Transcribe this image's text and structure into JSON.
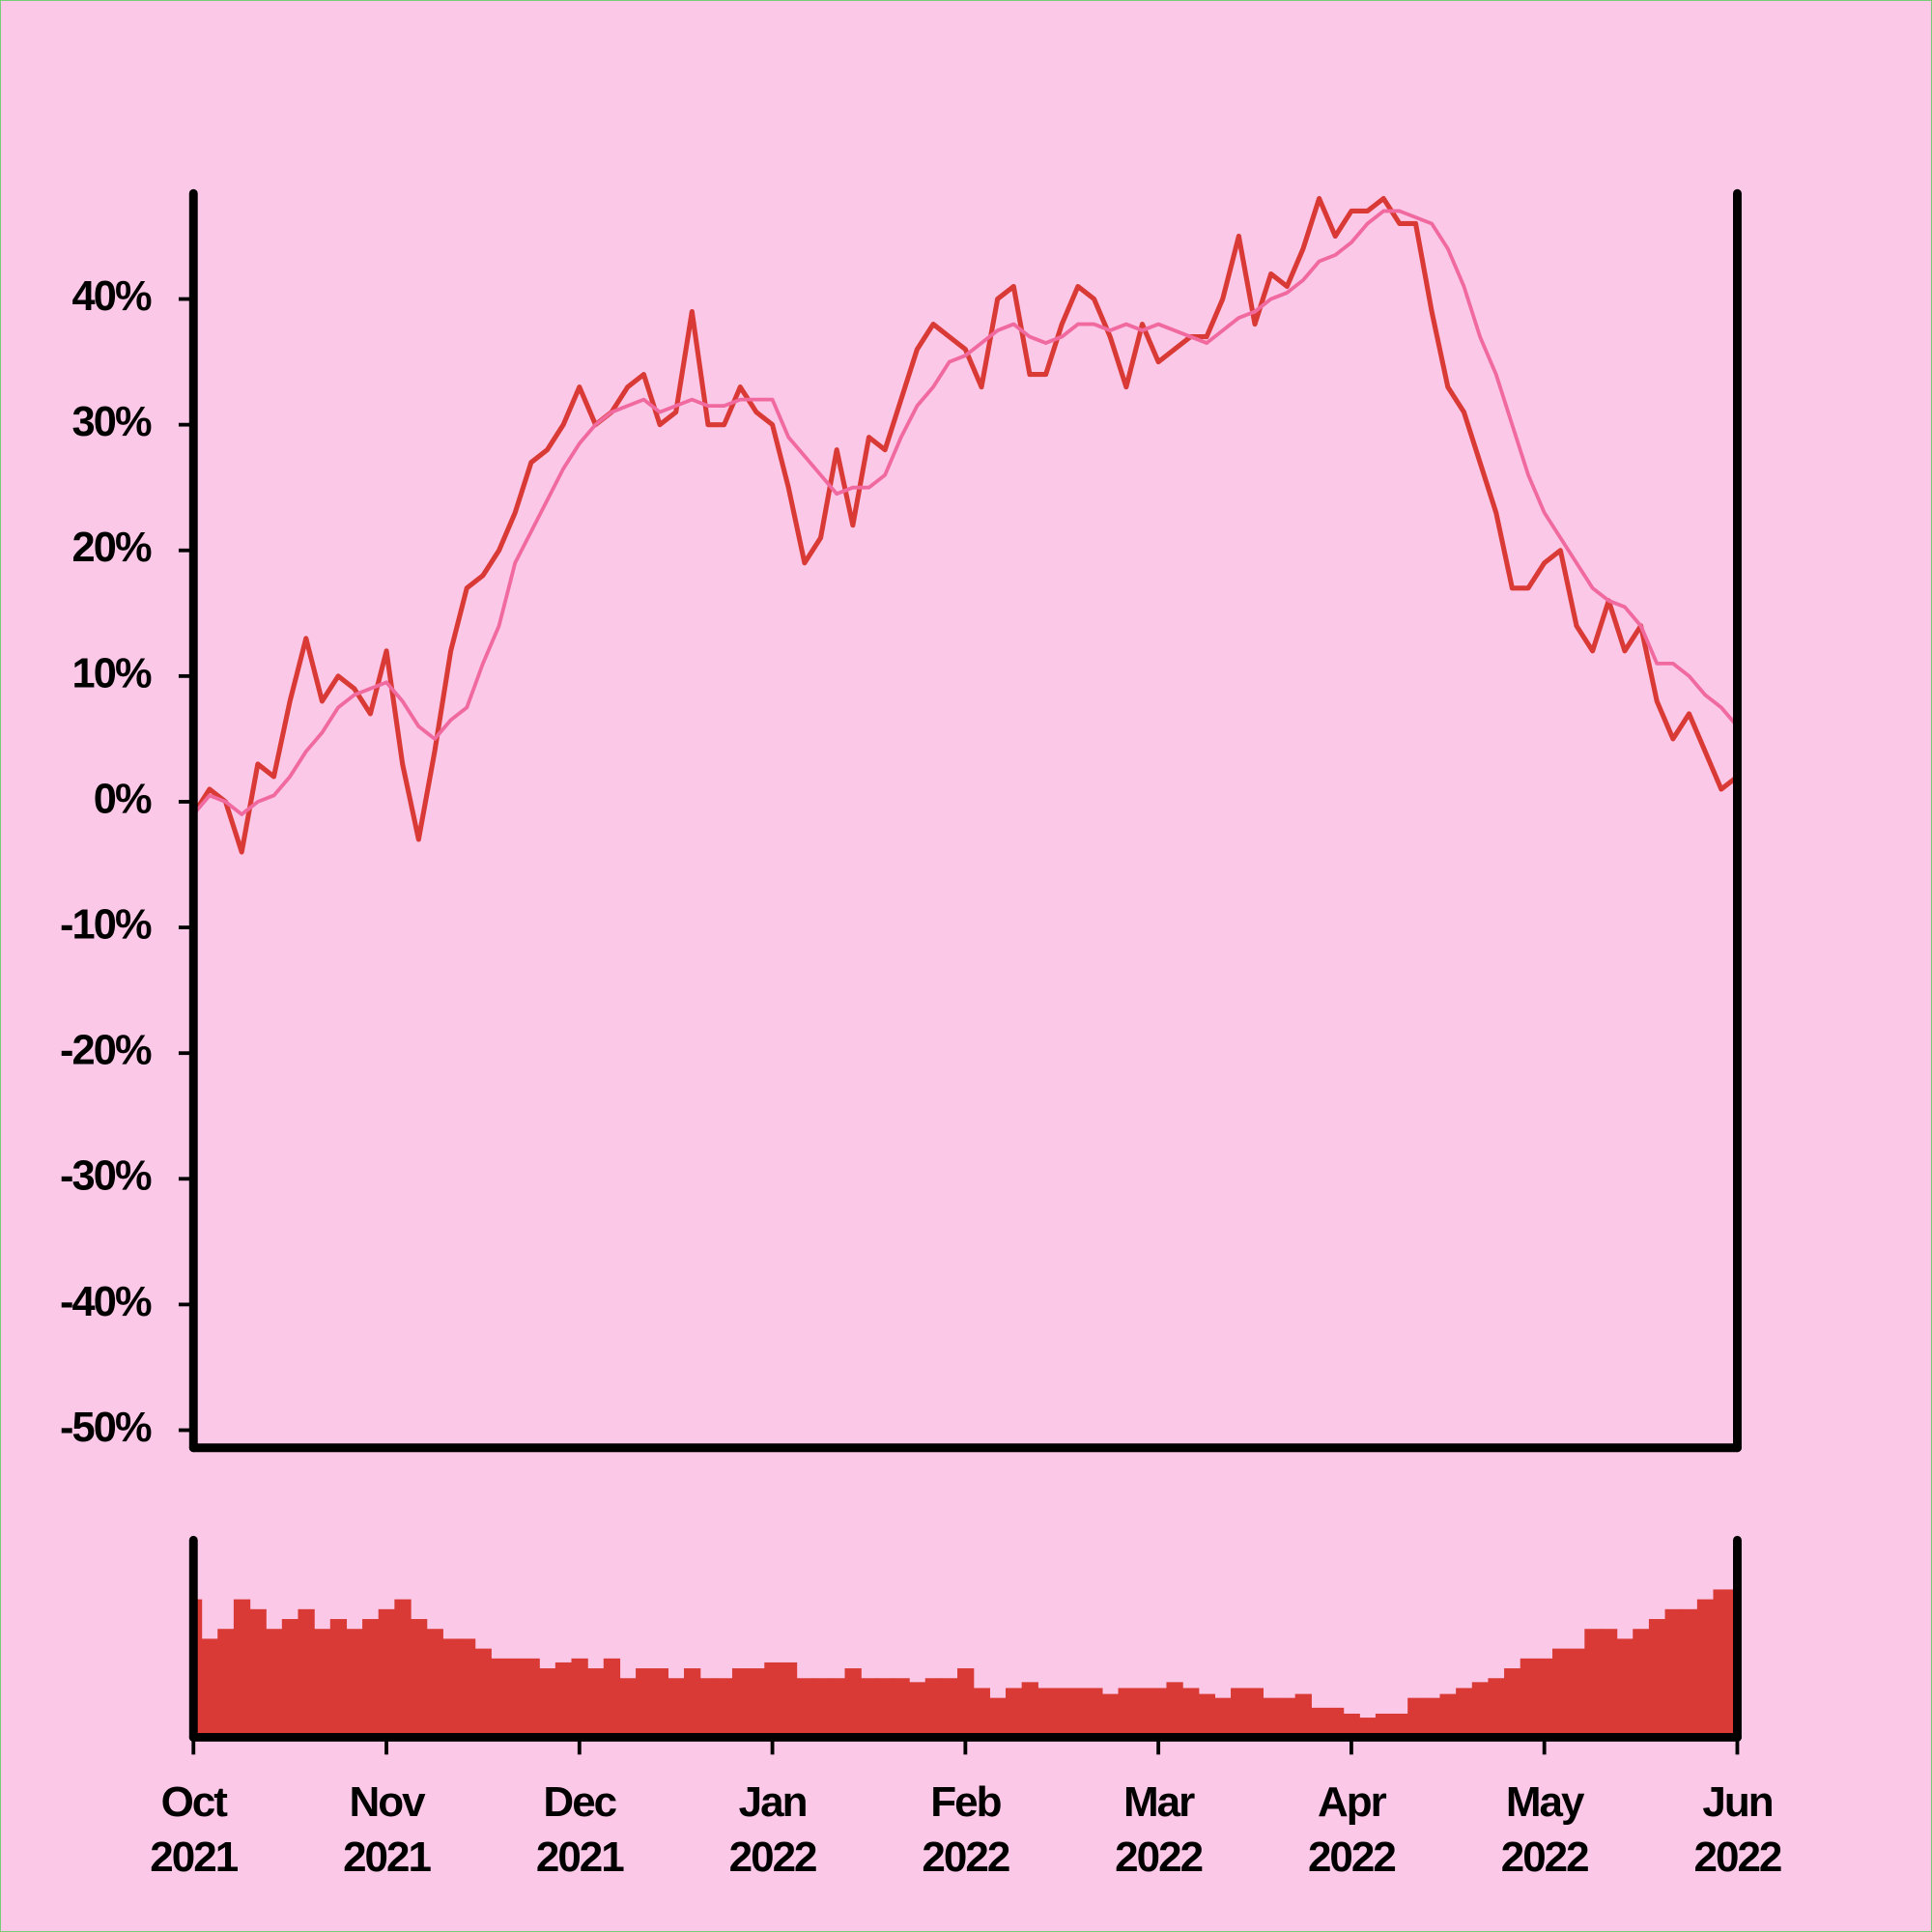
{
  "chart_data": [
    {
      "type": "line",
      "ylim": [
        -51.4,
        48.4
      ],
      "yticks": [
        {
          "value": -50,
          "label": "-50%"
        },
        {
          "value": -40,
          "label": "-40%"
        },
        {
          "value": -30,
          "label": "-30%"
        },
        {
          "value": -20,
          "label": "-20%"
        },
        {
          "value": -10,
          "label": "-10%"
        },
        {
          "value": 0,
          "label": "0%"
        },
        {
          "value": 10,
          "label": "10%"
        },
        {
          "value": 20,
          "label": "20%"
        },
        {
          "value": 30,
          "label": "30%"
        },
        {
          "value": 40,
          "label": "40%"
        }
      ],
      "series": [
        {
          "color": "#d93a35",
          "values": [
            -1,
            1,
            0,
            -4,
            3,
            2,
            8,
            13,
            8,
            10,
            9,
            7,
            12,
            3,
            -3,
            4,
            12,
            17,
            18,
            20,
            23,
            27,
            28,
            30,
            33,
            30,
            31,
            33,
            34,
            30,
            31,
            39,
            30,
            30,
            33,
            31,
            30,
            25,
            19,
            21,
            28,
            22,
            29,
            28,
            32,
            36,
            38,
            37,
            36,
            33,
            40,
            41,
            34,
            34,
            38,
            41,
            40,
            37,
            33,
            38,
            35,
            36,
            37,
            37,
            40,
            45,
            38,
            42,
            41,
            44,
            48,
            45,
            47,
            47,
            48,
            46,
            46,
            39,
            33,
            31,
            27,
            23,
            17,
            17,
            19,
            20,
            14,
            12,
            16,
            12,
            14,
            8,
            5,
            7,
            4,
            1,
            2
          ]
        },
        {
          "color": "#f06a9f",
          "values": [
            -1,
            0.5,
            0,
            -1,
            0,
            0.5,
            2,
            4,
            5.5,
            7.5,
            8.5,
            9,
            9.5,
            8,
            6,
            5,
            6.5,
            7.5,
            11,
            14,
            19,
            21.5,
            24,
            26.5,
            28.5,
            30,
            31,
            31.5,
            32,
            31,
            31.5,
            32,
            31.5,
            31.5,
            32,
            32,
            32,
            29,
            27.5,
            26,
            24.5,
            25,
            25,
            26,
            29,
            31.5,
            33,
            35,
            35.5,
            36.5,
            37.5,
            38,
            37,
            36.5,
            37,
            38,
            38,
            37.5,
            38,
            37.5,
            38,
            37.5,
            37,
            36.5,
            37.5,
            38.5,
            39,
            40,
            40.5,
            41.5,
            43,
            43.5,
            44.5,
            46,
            47,
            47,
            46.5,
            46,
            44,
            41,
            37,
            34,
            30,
            26,
            23,
            21,
            19,
            17,
            16,
            15.5,
            14,
            11,
            11,
            10,
            8.5,
            7.5,
            6
          ]
        }
      ]
    },
    {
      "type": "bar",
      "color": "#d93a35",
      "ylim": [
        0,
        100
      ],
      "categories": [
        "Oct\n2021",
        null,
        null,
        null,
        null,
        null,
        null,
        null,
        null,
        null,
        null,
        null,
        "Nov\n2021",
        null,
        null,
        null,
        null,
        null,
        null,
        null,
        null,
        null,
        null,
        null,
        "Dec\n2021",
        null,
        null,
        null,
        null,
        null,
        null,
        null,
        null,
        null,
        null,
        null,
        "Jan\n2022",
        null,
        null,
        null,
        null,
        null,
        null,
        null,
        null,
        null,
        null,
        null,
        "Feb\n2022",
        null,
        null,
        null,
        null,
        null,
        null,
        null,
        null,
        null,
        null,
        null,
        "Mar\n2022",
        null,
        null,
        null,
        null,
        null,
        null,
        null,
        null,
        null,
        null,
        null,
        "Apr\n2022",
        null,
        null,
        null,
        null,
        null,
        null,
        null,
        null,
        null,
        null,
        null,
        "May\n2022",
        null,
        null,
        null,
        null,
        null,
        null,
        null,
        null,
        null,
        null,
        null,
        "Jun\n2022"
      ],
      "values": [
        70,
        50,
        55,
        70,
        65,
        55,
        60,
        65,
        55,
        60,
        55,
        60,
        65,
        70,
        60,
        55,
        50,
        50,
        45,
        40,
        40,
        40,
        35,
        38,
        40,
        35,
        40,
        30,
        35,
        35,
        30,
        35,
        30,
        30,
        35,
        35,
        38,
        38,
        30,
        30,
        30,
        35,
        30,
        30,
        30,
        28,
        30,
        30,
        35,
        25,
        20,
        25,
        28,
        25,
        25,
        25,
        25,
        22,
        25,
        25,
        25,
        28,
        25,
        22,
        20,
        25,
        25,
        20,
        20,
        22,
        15,
        15,
        12,
        10,
        12,
        12,
        20,
        20,
        22,
        25,
        28,
        30,
        35,
        40,
        40,
        45,
        45,
        55,
        55,
        50,
        55,
        60,
        65,
        65,
        70,
        75,
        75
      ]
    }
  ]
}
